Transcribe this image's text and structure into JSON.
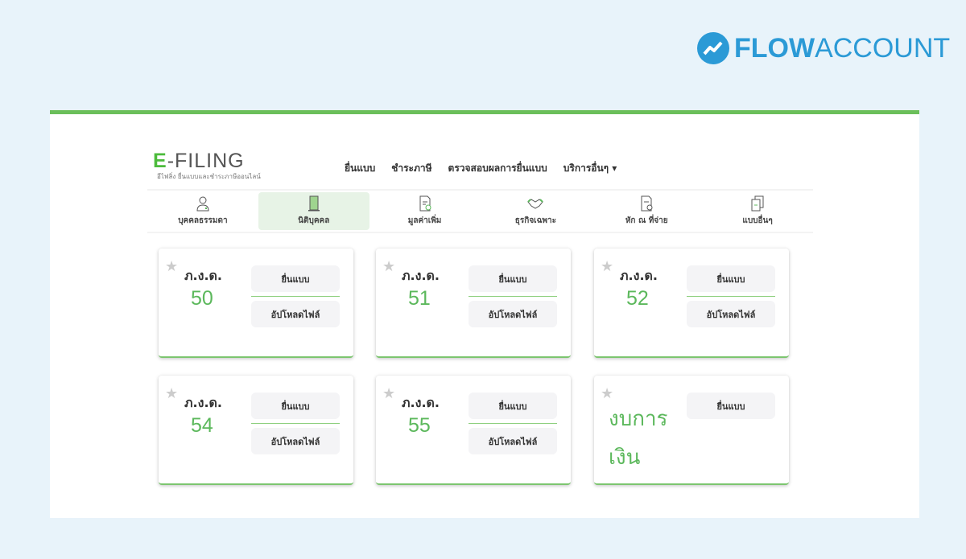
{
  "brand": {
    "name_bold": "FLOW",
    "name_light": "ACCOUNT",
    "color": "#2b9ad6"
  },
  "logo": {
    "e": "E",
    "rest": "-FILING",
    "tagline": "อีไฟลิ่ง ยื่นแบบและชำระภาษีออนไลน์"
  },
  "nav": [
    "ยื่นแบบ",
    "ชำระภาษี",
    "ตรวจสอบผลการยื่นแบบ",
    "บริการอื่นๆ ▾"
  ],
  "tabs": [
    {
      "label": "บุคคลธรรมดา",
      "icon": "person-icon"
    },
    {
      "label": "นิติบุคคล",
      "icon": "building-icon",
      "active": true
    },
    {
      "label": "มูลค่าเพิ่ม",
      "icon": "document-icon"
    },
    {
      "label": "ธุรกิจเฉพาะ",
      "icon": "handshake-icon"
    },
    {
      "label": "หัก ณ ที่จ่าย",
      "icon": "document-stamp-icon"
    },
    {
      "label": "แบบอื่นๆ",
      "icon": "copy-icon"
    }
  ],
  "cards": [
    {
      "code": "ภ.ง.ด.",
      "number": "50",
      "file": "ยื่นแบบ",
      "upload": "อัปโหลดไฟล์"
    },
    {
      "code": "ภ.ง.ด.",
      "number": "51",
      "file": "ยื่นแบบ",
      "upload": "อัปโหลดไฟล์"
    },
    {
      "code": "ภ.ง.ด.",
      "number": "52",
      "file": "ยื่นแบบ",
      "upload": "อัปโหลดไฟล์"
    },
    {
      "code": "ภ.ง.ด.",
      "number": "54",
      "file": "ยื่นแบบ",
      "upload": "อัปโหลดไฟล์"
    },
    {
      "code": "ภ.ง.ด.",
      "number": "55",
      "file": "ยื่นแบบ",
      "upload": "อัปโหลดไฟล์"
    },
    {
      "title_line1": "งบการ",
      "title_line2": "เงิน",
      "file": "ยื่นแบบ"
    }
  ],
  "colors": {
    "accent": "#6bbf5a",
    "background": "#e8f3fa"
  }
}
